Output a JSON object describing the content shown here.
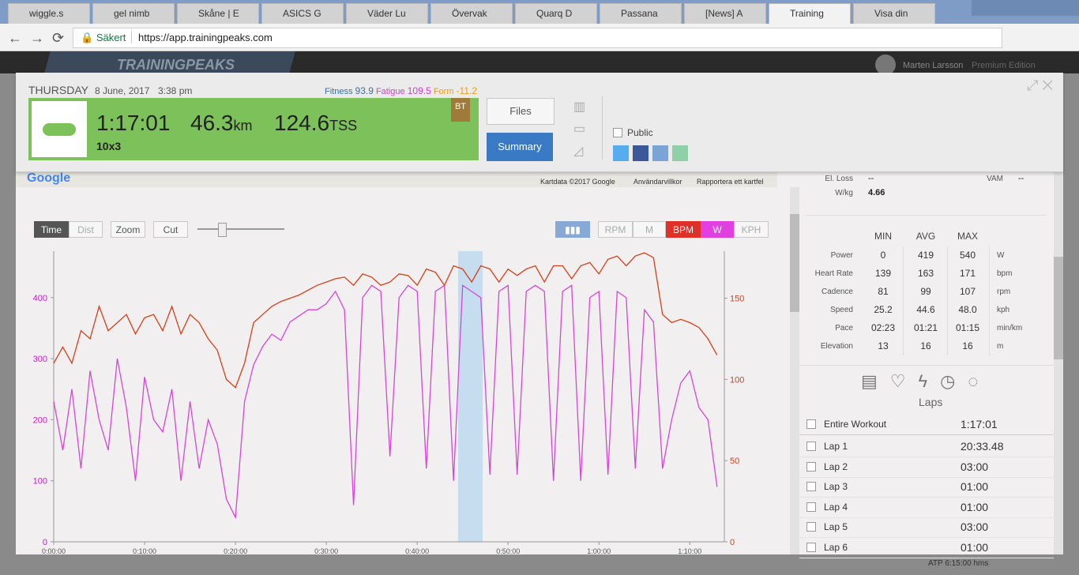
{
  "browser": {
    "tabs": [
      "wiggle.s",
      "gel nimb",
      "Skåne | E",
      "ASICS G",
      "Väder Lu",
      "Övervak",
      "Quarq D",
      "Passana",
      "[News] A",
      "Training",
      "Visa din"
    ],
    "secure_label": "Säkert",
    "url": "https://app.trainingpeaks.com"
  },
  "app": {
    "logo": "TRAININGPEAKS",
    "user": "Marten Larsson",
    "edition": "Premium Edition"
  },
  "workout": {
    "day": "THURSDAY",
    "date": "8 June, 2017",
    "time": "3:38 pm",
    "fitness_label": "Fitness",
    "fitness": "93.9",
    "fatigue_label": "Fatigue",
    "fatigue": "109.5",
    "form_label": "Form",
    "form": "-11.2",
    "duration": "1:17:01",
    "distance": "46.3",
    "distance_unit": "km",
    "tss": "124.6",
    "tss_unit": "TSS",
    "title": "10x3",
    "badge": "BT",
    "files_button": "Files",
    "summary_button": "Summary",
    "public_label": "Public"
  },
  "map": {
    "logo": "Google",
    "copyright": "Kartdata ©2017 Google",
    "terms": "Användarvillkor",
    "report": "Rapportera ett kartfel"
  },
  "toolbar": {
    "modes": [
      "Time",
      "Dist"
    ],
    "tools": [
      "Zoom",
      "Cut"
    ],
    "channels": [
      "RPM",
      "M",
      "KPH"
    ]
  },
  "chart": {
    "type": "line",
    "x": [
      0,
      1,
      2,
      3,
      4,
      5,
      6,
      7,
      8,
      9,
      10,
      11,
      12,
      13,
      14,
      15,
      16,
      17,
      18,
      19,
      20,
      21,
      22,
      23,
      24,
      25,
      26,
      27,
      28,
      29,
      30,
      31,
      32,
      33,
      34,
      35,
      36,
      37,
      38,
      39,
      40,
      41,
      42,
      43,
      44,
      45,
      46,
      47,
      48,
      49,
      50,
      51,
      52,
      53,
      54,
      55,
      56,
      57,
      58,
      59,
      60,
      61,
      62,
      63,
      64,
      65,
      66,
      67,
      68,
      69,
      70,
      71,
      72,
      73
    ],
    "series": [
      {
        "name": "W",
        "color": "#d646d6",
        "values": [
          230,
          150,
          250,
          120,
          280,
          200,
          150,
          300,
          220,
          100,
          270,
          200,
          180,
          250,
          100,
          230,
          120,
          200,
          160,
          70,
          40,
          230,
          290,
          320,
          340,
          330,
          360,
          370,
          380,
          380,
          390,
          410,
          380,
          60,
          400,
          420,
          410,
          140,
          400,
          420,
          410,
          120,
          410,
          420,
          100,
          420,
          410,
          400,
          110,
          410,
          420,
          110,
          410,
          420,
          410,
          100,
          410,
          420,
          100,
          400,
          410,
          110,
          410,
          400,
          120,
          380,
          360,
          120,
          200,
          260,
          280,
          220,
          200,
          90
        ]
      },
      {
        "name": "BPM",
        "color": "#d4401a",
        "axis": "y2",
        "values": [
          110,
          120,
          110,
          130,
          125,
          145,
          130,
          135,
          140,
          128,
          138,
          140,
          130,
          145,
          128,
          140,
          135,
          125,
          118,
          100,
          95,
          110,
          135,
          140,
          145,
          148,
          150,
          152,
          155,
          158,
          160,
          162,
          163,
          158,
          165,
          163,
          158,
          160,
          165,
          164,
          158,
          168,
          166,
          158,
          170,
          168,
          160,
          170,
          168,
          160,
          168,
          164,
          168,
          170,
          160,
          170,
          170,
          162,
          170,
          172,
          165,
          174,
          176,
          170,
          176,
          178,
          175,
          140,
          135,
          137,
          135,
          132,
          125,
          115
        ]
      }
    ],
    "xlim": [
      0,
      73.8
    ],
    "ylim": [
      0,
      476
    ],
    "y2lim": [
      0,
      179
    ],
    "yticks": [
      0,
      100,
      200,
      300,
      400
    ],
    "y2ticks": [
      0,
      50,
      100,
      150
    ],
    "xticks": [
      {
        "value": 0,
        "label": "0:00:00"
      },
      {
        "value": 10,
        "label": "0:10:00"
      },
      {
        "value": 20,
        "label": "0:20:00"
      },
      {
        "value": 30,
        "label": "0:30:00"
      },
      {
        "value": 40,
        "label": "0:40:00"
      },
      {
        "value": 50,
        "label": "0:50:00"
      },
      {
        "value": 60,
        "label": "1:00:00"
      },
      {
        "value": 70,
        "label": "1:10:00"
      }
    ]
  },
  "stats": {
    "summary": [
      {
        "label": "El. Loss",
        "value": "--"
      },
      {
        "label": "VAM",
        "value": "--"
      },
      {
        "label": "W/kg",
        "value": "4.66"
      }
    ],
    "columns": [
      "MIN",
      "AVG",
      "MAX"
    ],
    "rows": [
      {
        "label": "Power",
        "min": "0",
        "avg": "419",
        "max": "540",
        "unit": "W"
      },
      {
        "label": "Heart Rate",
        "min": "139",
        "avg": "163",
        "max": "171",
        "unit": "bpm"
      },
      {
        "label": "Cadence",
        "min": "81",
        "avg": "99",
        "max": "107",
        "unit": "rpm"
      },
      {
        "label": "Speed",
        "min": "25.2",
        "avg": "44.6",
        "max": "48.0",
        "unit": "kph"
      },
      {
        "label": "Pace",
        "min": "02:23",
        "avg": "01:21",
        "max": "01:15",
        "unit": "min/km"
      },
      {
        "label": "Elevation",
        "min": "13",
        "avg": "16",
        "max": "16",
        "unit": "m"
      }
    ]
  },
  "laps": {
    "title": "Laps",
    "rows": [
      {
        "name": "Entire Workout",
        "time": "1:17:01"
      },
      {
        "name": "Lap 1",
        "time": "20:33.48"
      },
      {
        "name": "Lap 2",
        "time": "03:00"
      },
      {
        "name": "Lap 3",
        "time": "01:00"
      },
      {
        "name": "Lap 4",
        "time": "01:00"
      },
      {
        "name": "Lap 5",
        "time": "03:00"
      },
      {
        "name": "Lap 6",
        "time": "01:00"
      }
    ]
  },
  "footer": {
    "atp_label": "ATP",
    "atp_value": "6:15:00",
    "atp_unit": "hms"
  }
}
